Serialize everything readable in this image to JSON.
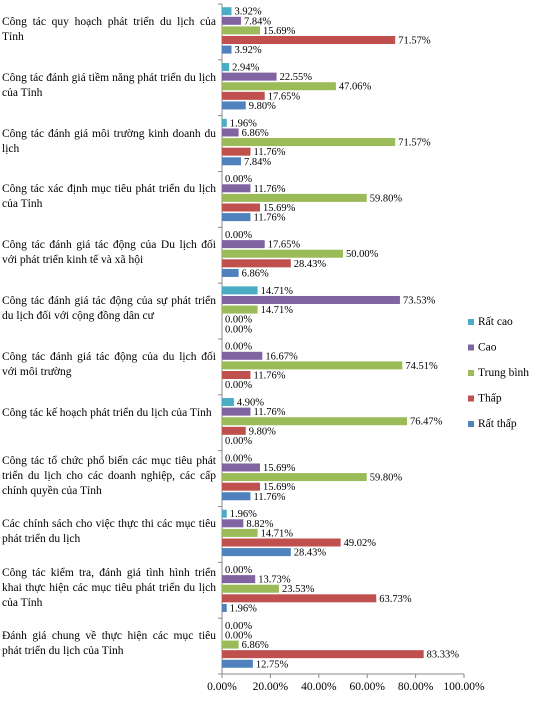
{
  "chart_data": {
    "type": "bar",
    "orientation": "horizontal",
    "categories": [
      "Công tác quy hoạch phát triển du lịch của Tỉnh",
      "Công tác đánh giá tiềm năng phát triển du lịch của Tỉnh",
      "Công tác đánh giá môi trường kinh doanh du lịch",
      "Công tác xác định mục tiêu phát triển du lịch của Tỉnh",
      "Công tác đánh giá tác động của Du lịch đối với phát triển kinh tế và xã hội",
      "Công tác đánh giá tác động của sự phát triển du lịch đối với cộng đồng dân cư",
      "Công tác đánh giá tác động của du lịch đối với môi trường",
      "Công tác kế hoạch phát triển du lịch của Tỉnh",
      "Công tác tổ chức phổ biến các mục tiêu phát triển du lịch cho các doanh nghiệp, các cấp chính quyền của Tỉnh",
      "Các chính sách cho việc thực thi các mục tiêu phát triển du lịch",
      "Công tác kiểm tra, đánh giá tình hình triển khai thực hiện các mục tiêu phát triển du lịch của Tỉnh",
      "Đánh giá chung về thực hiện các mục tiêu phát triển du lịch của Tỉnh"
    ],
    "series": [
      {
        "name": "Rất cao",
        "color": "#4BACC6",
        "values": [
          3.92,
          2.94,
          1.96,
          0.0,
          0.0,
          14.71,
          0.0,
          4.9,
          0.0,
          1.96,
          0.0,
          0.0
        ],
        "labels": [
          "3.92%",
          "2.94%",
          "1.96%",
          "0.00%",
          "0.00%",
          "14.71%",
          "0.00%",
          "4.90%",
          "0.00%",
          "1.96%",
          "0.00%",
          "0.00%"
        ]
      },
      {
        "name": "Cao",
        "color": "#8064A2",
        "values": [
          7.84,
          22.55,
          6.86,
          11.76,
          17.65,
          73.53,
          16.67,
          11.76,
          15.69,
          8.82,
          13.73,
          0.0
        ],
        "labels": [
          "7.84%",
          "22.55%",
          "6.86%",
          "11.76%",
          "17.65%",
          "73.53%",
          "16.67%",
          "11.76%",
          "15.69%",
          "8.82%",
          "13.73%",
          "0.00%"
        ]
      },
      {
        "name": "Trung bình",
        "color": "#9BBB59",
        "values": [
          15.69,
          47.06,
          71.57,
          59.8,
          50.0,
          14.71,
          74.51,
          76.47,
          59.8,
          14.71,
          23.53,
          6.86
        ],
        "labels": [
          "15.69%",
          "47.06%",
          "71.57%",
          "59.80%",
          "50.00%",
          "14.71%",
          "74.51%",
          "76.47%",
          "59.80%",
          "14.71%",
          "23.53%",
          "6.86%"
        ]
      },
      {
        "name": "Thấp",
        "color": "#C0504D",
        "values": [
          71.57,
          17.65,
          11.76,
          15.69,
          28.43,
          0.0,
          11.76,
          9.8,
          15.69,
          49.02,
          63.73,
          83.33
        ],
        "labels": [
          "71.57%",
          "17.65%",
          "11.76%",
          "15.69%",
          "28.43%",
          "0.00%",
          "11.76%",
          "9.80%",
          "15.69%",
          "49.02%",
          "63.73%",
          "83.33%"
        ]
      },
      {
        "name": "Rất thấp",
        "color": "#4F81BD",
        "values": [
          3.92,
          9.8,
          7.84,
          11.76,
          6.86,
          0.0,
          0.0,
          0.0,
          11.76,
          28.43,
          1.96,
          12.75
        ],
        "labels": [
          "3.92%",
          "9.80%",
          "7.84%",
          "11.76%",
          "6.86%",
          "0.00%",
          "0.00%",
          "0.00%",
          "11.76%",
          "28.43%",
          "1.96%",
          "12.75%"
        ]
      }
    ],
    "xticks": [
      "0.00%",
      "20.00%",
      "40.00%",
      "60.00%",
      "80.00%",
      "100.00%"
    ],
    "xlim": [
      0,
      100
    ],
    "title": "",
    "xlabel": "",
    "ylabel": "",
    "legend_position": "right",
    "legend_order": [
      "Rất cao",
      "Cao",
      "Trung bình",
      "Thấp",
      "Rất thấp"
    ],
    "grid": false
  }
}
